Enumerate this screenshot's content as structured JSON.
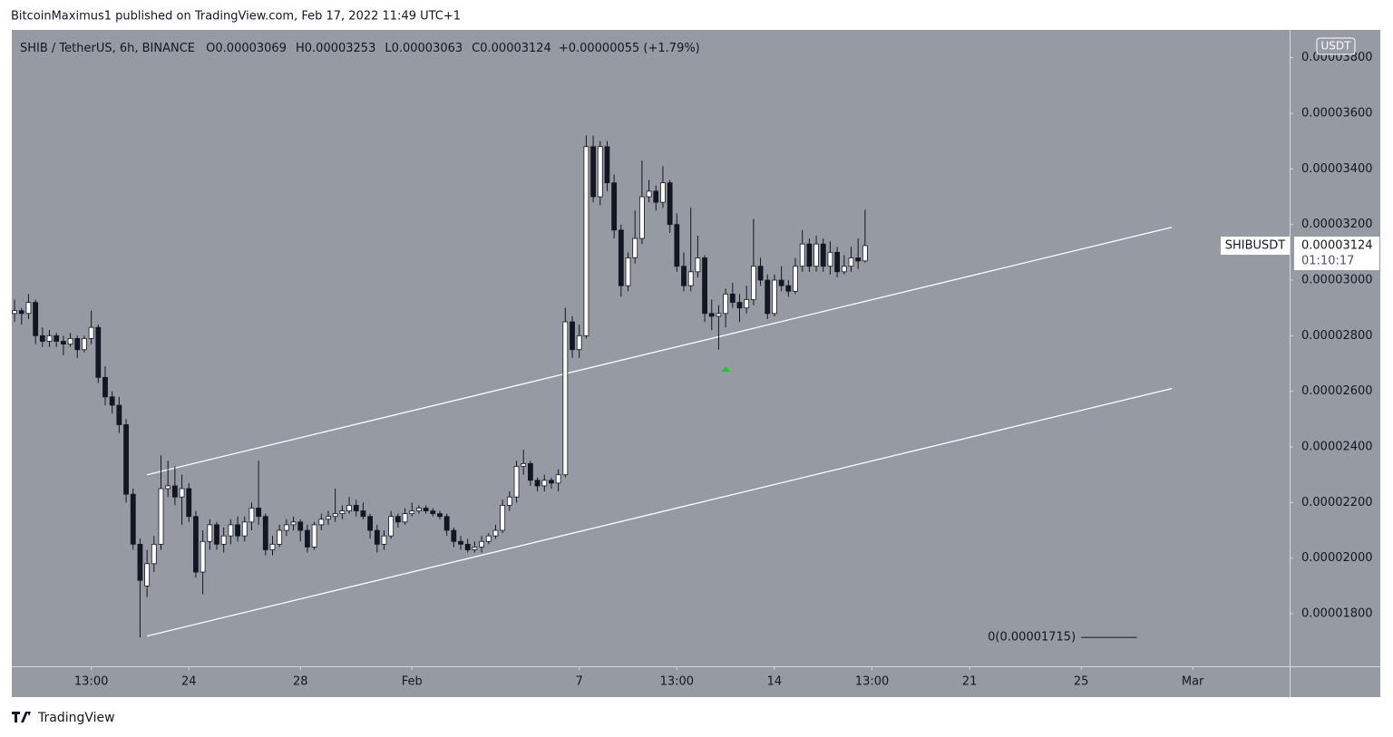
{
  "header": {
    "publisher": "BitcoinMaximus1 published on TradingView.com, Feb 17, 2022 11:49 UTC+1"
  },
  "footer": {
    "brand": "TradingView"
  },
  "chart_data": {
    "type": "candlestick",
    "symbol_info": "SHIB / TetherUS, 6h, BINANCE",
    "ohlc_legend": [
      {
        "label": "O",
        "value": "0.00003069"
      },
      {
        "label": "H",
        "value": "0.00003253"
      },
      {
        "label": "L",
        "value": "0.00003063"
      },
      {
        "label": "C",
        "value": "0.00003124"
      }
    ],
    "change": "+0.00000055 (+1.79%)",
    "currency": "USDT",
    "price_tag": {
      "symbol": "SHIBUSDT",
      "price": "0.00003124",
      "countdown": "01:10:17"
    },
    "up_color": "#ffffff",
    "down_color": "#131722",
    "background": "#959aa3",
    "xlim": [
      -0.4,
      182.9
    ],
    "xticks": [
      {
        "value": 11,
        "label": "13:00"
      },
      {
        "value": 25,
        "label": "24"
      },
      {
        "value": 41,
        "label": "28"
      },
      {
        "value": 57,
        "label": "Feb"
      },
      {
        "value": 81,
        "label": "7"
      },
      {
        "value": 95,
        "label": "13:00"
      },
      {
        "value": 109,
        "label": "14"
      },
      {
        "value": 123,
        "label": "13:00"
      },
      {
        "value": 137,
        "label": "21"
      },
      {
        "value": 153,
        "label": "25"
      },
      {
        "value": 169,
        "label": "Mar"
      }
    ],
    "ylim": [
      1.611e-05,
      3.9e-05
    ],
    "yticks": [
      {
        "value": 1.8e-05,
        "label": "0.00001800"
      },
      {
        "value": 2e-05,
        "label": "0.00002000"
      },
      {
        "value": 2.2e-05,
        "label": "0.00002200"
      },
      {
        "value": 2.4e-05,
        "label": "0.00002400"
      },
      {
        "value": 2.6e-05,
        "label": "0.00002600"
      },
      {
        "value": 2.8e-05,
        "label": "0.00002800"
      },
      {
        "value": 3e-05,
        "label": "0.00003000"
      },
      {
        "value": 3.2e-05,
        "label": "0.00003200"
      },
      {
        "value": 3.4e-05,
        "label": "0.00003400"
      },
      {
        "value": 3.6e-05,
        "label": "0.00003600"
      },
      {
        "value": 3.8e-05,
        "label": "0.00003800"
      }
    ],
    "open": [
      2.88e-05,
      2.89e-05,
      2.88e-05,
      2.92e-05,
      2.8e-05,
      2.78e-05,
      2.8e-05,
      2.78e-05,
      2.77e-05,
      2.79e-05,
      2.75e-05,
      2.79e-05,
      2.83e-05,
      2.65e-05,
      2.58e-05,
      2.55e-05,
      2.48e-05,
      2.23e-05,
      2.05e-05,
      1.9e-05,
      1.98e-05,
      2.05e-05,
      2.25e-05,
      2.26e-05,
      2.22e-05,
      2.25e-05,
      2.15e-05,
      1.95e-05,
      2.06e-05,
      2.12e-05,
      2.05e-05,
      2.08e-05,
      2.12e-05,
      2.08e-05,
      2.13e-05,
      2.18e-05,
      2.15e-05,
      2.03e-05,
      2.05e-05,
      2.1e-05,
      2.12e-05,
      2.13e-05,
      2.1e-05,
      2.04e-05,
      2.12e-05,
      2.14e-05,
      2.15e-05,
      2.16e-05,
      2.17e-05,
      2.19e-05,
      2.17e-05,
      2.15e-05,
      2.1e-05,
      2.05e-05,
      2.08e-05,
      2.15e-05,
      2.13e-05,
      2.16e-05,
      2.17e-05,
      2.18e-05,
      2.17e-05,
      2.16e-05,
      2.15e-05,
      2.1e-05,
      2.06e-05,
      2.05e-05,
      2.03e-05,
      2.04e-05,
      2.06e-05,
      2.08e-05,
      2.1e-05,
      2.19e-05,
      2.22e-05,
      2.33e-05,
      2.34e-05,
      2.28e-05,
      2.26e-05,
      2.28e-05,
      2.27e-05,
      2.3e-05,
      2.85e-05,
      2.75e-05,
      2.8e-05,
      3.48e-05,
      3.3e-05,
      3.48e-05,
      3.35e-05,
      3.18e-05,
      2.98e-05,
      3.08e-05,
      3.15e-05,
      3.3e-05,
      3.32e-05,
      3.28e-05,
      3.35e-05,
      3.2e-05,
      3.05e-05,
      2.98e-05,
      3.03e-05,
      3.08e-05,
      2.88e-05,
      2.87e-05,
      2.88e-05,
      2.95e-05,
      2.92e-05,
      2.9e-05,
      2.93e-05,
      3.05e-05,
      3e-05,
      2.88e-05,
      3e-05,
      2.98e-05,
      2.96e-05,
      3.05e-05,
      3.13e-05,
      3.05e-05,
      3.13e-05,
      3.05e-05,
      3.1e-05,
      3.03e-05,
      3.05e-05,
      3.08e-05,
      3.069e-05
    ],
    "high": [
      2.93e-05,
      2.9e-05,
      2.95e-05,
      2.93e-05,
      2.83e-05,
      2.82e-05,
      2.81e-05,
      2.8e-05,
      2.81e-05,
      2.8e-05,
      2.8e-05,
      2.89e-05,
      2.84e-05,
      2.69e-05,
      2.6e-05,
      2.58e-05,
      2.5e-05,
      2.25e-05,
      2.07e-05,
      2.03e-05,
      2.08e-05,
      2.37e-05,
      2.35e-05,
      2.33e-05,
      2.3e-05,
      2.27e-05,
      2.17e-05,
      2.1e-05,
      2.14e-05,
      2.13e-05,
      2.11e-05,
      2.14e-05,
      2.15e-05,
      2.15e-05,
      2.2e-05,
      2.35e-05,
      2.16e-05,
      2.08e-05,
      2.12e-05,
      2.14e-05,
      2.15e-05,
      2.14e-05,
      2.12e-05,
      2.13e-05,
      2.16e-05,
      2.17e-05,
      2.25e-05,
      2.19e-05,
      2.22e-05,
      2.21e-05,
      2.2e-05,
      2.16e-05,
      2.12e-05,
      2.1e-05,
      2.17e-05,
      2.16e-05,
      2.18e-05,
      2.2e-05,
      2.19e-05,
      2.19e-05,
      2.18e-05,
      2.17e-05,
      2.16e-05,
      2.11e-05,
      2.08e-05,
      2.07e-05,
      2.06e-05,
      2.08e-05,
      2.09e-05,
      2.12e-05,
      2.21e-05,
      2.24e-05,
      2.35e-05,
      2.39e-05,
      2.35e-05,
      2.29e-05,
      2.3e-05,
      2.29e-05,
      2.32e-05,
      2.9e-05,
      2.87e-05,
      2.84e-05,
      3.52e-05,
      3.52e-05,
      3.5e-05,
      3.5e-05,
      3.38e-05,
      3.2e-05,
      3.1e-05,
      3.25e-05,
      3.43e-05,
      3.36e-05,
      3.34e-05,
      3.41e-05,
      3.36e-05,
      3.24e-05,
      3.1e-05,
      3.26e-05,
      3.16e-05,
      3.09e-05,
      2.93e-05,
      2.91e-05,
      2.97e-05,
      2.99e-05,
      2.95e-05,
      2.98e-05,
      3.22e-05,
      3.08e-05,
      3.02e-05,
      3.02e-05,
      3.05e-05,
      3e-05,
      3.08e-05,
      3.18e-05,
      3.15e-05,
      3.16e-05,
      3.15e-05,
      3.14e-05,
      3.12e-05,
      3.09e-05,
      3.12e-05,
      3.15e-05,
      3.253e-05
    ],
    "low": [
      2.85e-05,
      2.84e-05,
      2.86e-05,
      2.77e-05,
      2.76e-05,
      2.76e-05,
      2.76e-05,
      2.73e-05,
      2.76e-05,
      2.72e-05,
      2.74e-05,
      2.77e-05,
      2.63e-05,
      2.55e-05,
      2.52e-05,
      2.45e-05,
      2.2e-05,
      2.03e-05,
      1.715e-05,
      1.86e-05,
      1.95e-05,
      2.03e-05,
      2.22e-05,
      2.19e-05,
      2.12e-05,
      2.13e-05,
      1.93e-05,
      1.87e-05,
      2.03e-05,
      2.03e-05,
      2.02e-05,
      2.05e-05,
      2.06e-05,
      2.06e-05,
      2.1e-05,
      2.12e-05,
      2.01e-05,
      2.01e-05,
      2.04e-05,
      2.08e-05,
      2.1e-05,
      2.06e-05,
      2.02e-05,
      2.03e-05,
      2.1e-05,
      2.12e-05,
      2.13e-05,
      2.14e-05,
      2.16e-05,
      2.15e-05,
      2.14e-05,
      2.07e-05,
      2.02e-05,
      2.03e-05,
      2.07e-05,
      2.11e-05,
      2.12e-05,
      2.15e-05,
      2.16e-05,
      2.16e-05,
      2.15e-05,
      2.14e-05,
      2.08e-05,
      2.04e-05,
      2.03e-05,
      2.02e-05,
      2.02e-05,
      2.02e-05,
      2.05e-05,
      2.07e-05,
      2.09e-05,
      2.17e-05,
      2.2e-05,
      2.3e-05,
      2.26e-05,
      2.24e-05,
      2.24e-05,
      2.25e-05,
      2.24e-05,
      2.29e-05,
      2.72e-05,
      2.72e-05,
      2.79e-05,
      3.28e-05,
      3.27e-05,
      3.32e-05,
      3.15e-05,
      2.94e-05,
      2.96e-05,
      3.06e-05,
      3.13e-05,
      3.28e-05,
      3.25e-05,
      3.26e-05,
      3.17e-05,
      3.03e-05,
      2.96e-05,
      2.96e-05,
      3.01e-05,
      2.85e-05,
      2.82e-05,
      2.75e-05,
      2.83e-05,
      2.9e-05,
      2.85e-05,
      2.88e-05,
      2.91e-05,
      2.98e-05,
      2.86e-05,
      2.87e-05,
      2.96e-05,
      2.94e-05,
      2.95e-05,
      3.03e-05,
      3.03e-05,
      3.03e-05,
      3.03e-05,
      3.02e-05,
      3.01e-05,
      3.02e-05,
      3.03e-05,
      3.04e-05,
      3.063e-05
    ],
    "close": [
      2.89e-05,
      2.88e-05,
      2.92e-05,
      2.8e-05,
      2.78e-05,
      2.8e-05,
      2.78e-05,
      2.77e-05,
      2.79e-05,
      2.75e-05,
      2.79e-05,
      2.83e-05,
      2.65e-05,
      2.58e-05,
      2.55e-05,
      2.48e-05,
      2.23e-05,
      2.05e-05,
      1.92e-05,
      1.98e-05,
      2.05e-05,
      2.25e-05,
      2.26e-05,
      2.22e-05,
      2.25e-05,
      2.15e-05,
      1.95e-05,
      2.06e-05,
      2.12e-05,
      2.05e-05,
      2.08e-05,
      2.12e-05,
      2.08e-05,
      2.13e-05,
      2.18e-05,
      2.15e-05,
      2.03e-05,
      2.05e-05,
      2.1e-05,
      2.12e-05,
      2.13e-05,
      2.1e-05,
      2.04e-05,
      2.12e-05,
      2.14e-05,
      2.15e-05,
      2.16e-05,
      2.17e-05,
      2.19e-05,
      2.17e-05,
      2.15e-05,
      2.1e-05,
      2.05e-05,
      2.08e-05,
      2.15e-05,
      2.13e-05,
      2.16e-05,
      2.17e-05,
      2.18e-05,
      2.17e-05,
      2.16e-05,
      2.15e-05,
      2.1e-05,
      2.06e-05,
      2.05e-05,
      2.03e-05,
      2.04e-05,
      2.06e-05,
      2.08e-05,
      2.1e-05,
      2.19e-05,
      2.22e-05,
      2.33e-05,
      2.34e-05,
      2.28e-05,
      2.26e-05,
      2.28e-05,
      2.27e-05,
      2.3e-05,
      2.85e-05,
      2.75e-05,
      2.8e-05,
      3.48e-05,
      3.3e-05,
      3.48e-05,
      3.35e-05,
      3.18e-05,
      2.98e-05,
      3.08e-05,
      3.15e-05,
      3.3e-05,
      3.32e-05,
      3.28e-05,
      3.35e-05,
      3.2e-05,
      3.05e-05,
      2.98e-05,
      3.03e-05,
      3.08e-05,
      2.88e-05,
      2.87e-05,
      2.88e-05,
      2.95e-05,
      2.92e-05,
      2.9e-05,
      2.93e-05,
      3.05e-05,
      3e-05,
      2.88e-05,
      3e-05,
      2.98e-05,
      2.96e-05,
      3.05e-05,
      3.13e-05,
      3.05e-05,
      3.13e-05,
      3.05e-05,
      3.1e-05,
      3.03e-05,
      3.05e-05,
      3.08e-05,
      3.069e-05,
      3.124e-05
    ],
    "trendlines": [
      {
        "x": [
          19,
          166
        ],
        "y": [
          2.3e-05,
          3.19e-05
        ]
      },
      {
        "x": [
          19,
          166
        ],
        "y": [
          1.72e-05,
          2.61e-05
        ]
      }
    ],
    "marker": {
      "x": 102,
      "y": 2.68e-05,
      "color": "#22c622"
    },
    "level": {
      "label": "0(0.00001715)",
      "value": 1.715e-05,
      "x": [
        153,
        161
      ]
    }
  }
}
